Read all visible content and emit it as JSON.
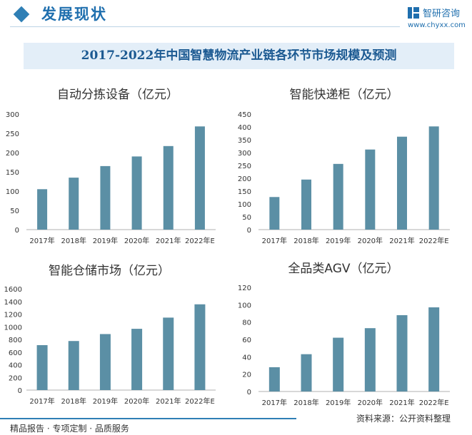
{
  "header": {
    "title": "发展现状",
    "brand_name": "智研咨询",
    "brand_url": "www.chyxx.com"
  },
  "banner": {
    "title": "2017-2022年中国智慧物流产业链各环节市场规模及预测"
  },
  "colors": {
    "bar": "#5b8fa5",
    "axis": "#b0b0b0",
    "text": "#333333",
    "accent": "#2f7fb5"
  },
  "chart_data": [
    {
      "type": "bar",
      "title": "自动分拣设备（亿元）",
      "categories": [
        "2017年",
        "2018年",
        "2019年",
        "2020年",
        "2021年",
        "2022年E"
      ],
      "values": [
        105,
        135,
        165,
        190,
        217,
        268
      ],
      "ylim": [
        0,
        300
      ],
      "yticks": [
        0,
        50,
        100,
        150,
        200,
        250,
        300
      ]
    },
    {
      "type": "bar",
      "title": "智能快递柜（亿元）",
      "categories": [
        "2017年",
        "2018年",
        "2019年",
        "2020年",
        "2021年",
        "2022年E"
      ],
      "values": [
        127,
        195,
        256,
        312,
        362,
        402
      ],
      "ylim": [
        0,
        450
      ],
      "yticks": [
        0,
        50,
        100,
        150,
        200,
        250,
        300,
        350,
        400,
        450
      ]
    },
    {
      "type": "bar",
      "title": "智能仓储市场（亿元）",
      "categories": [
        "2017年",
        "2018年",
        "2019年",
        "2020年",
        "2021年",
        "2022年E"
      ],
      "values": [
        710,
        775,
        885,
        968,
        1145,
        1355
      ],
      "ylim": [
        0,
        1600
      ],
      "yticks": [
        0,
        200,
        400,
        600,
        800,
        1000,
        1200,
        1400,
        1600
      ]
    },
    {
      "type": "bar",
      "title": "全品类AGV（亿元）",
      "categories": [
        "2017年",
        "2018年",
        "2019年",
        "2020年",
        "2021年",
        "2022年E"
      ],
      "values": [
        28,
        43,
        62,
        73,
        88,
        97
      ],
      "ylim": [
        0,
        120
      ],
      "yticks": [
        0,
        20,
        40,
        60,
        80,
        100,
        120
      ]
    }
  ],
  "footer": {
    "left": "精品报告 · 专项定制 · 品质服务",
    "source": "资料来源：公开资料整理"
  }
}
